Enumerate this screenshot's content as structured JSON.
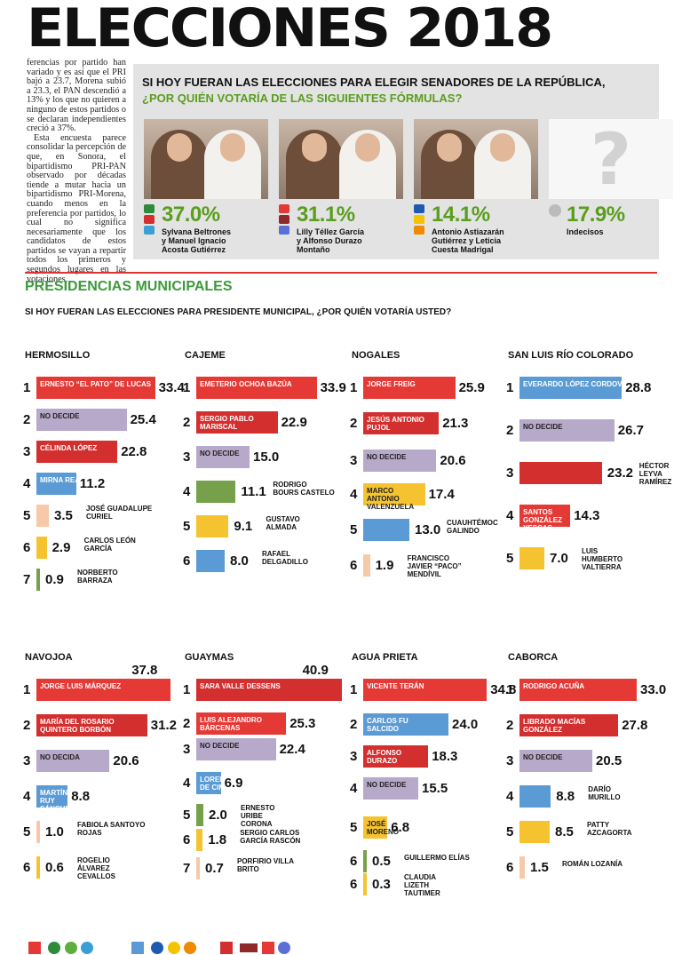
{
  "header": {
    "title": "ELECCIONES 2018"
  },
  "intro": [
    "ferencias por partido han variado y es así que el PRI bajó a 23.7, Morena subió a 23.3, el PAN descendió a 13% y los que no quieren a ninguno de estos partidos o se declaran independientes creció a 37%.",
    "Esta encuesta parece consolidar la percepción de que, en Sonora, el bipartidismo PRI-PAN observado por décadas tiende a mutar hacia un bipartidismo PRI-Morena, cuando menos en la preferencia por partidos, lo cual no significa necesariamente que los candidatos de estos partidos se vayan a repartir todos los primeros y segundos lugares en las votaciones."
  ],
  "senadores": {
    "title_line1": "SI HOY FUERAN LAS ELECCIONES PARA ELEGIR SENADORES DE LA REPÚBLICA,",
    "title_line2": "¿POR QUIÉN VOTARÍA DE LAS SIGUIENTES FÓRMULAS?",
    "candidates": [
      {
        "pct": "37.0%",
        "line1": "Sylvana Beltrones",
        "line2": "y Manuel Ignacio",
        "line3": "Acosta Gutiérrez",
        "logos": [
          "#2e8b3a",
          "#d32f2f",
          "#39a0d6"
        ]
      },
      {
        "pct": "31.1%",
        "line1": "Lilly Téllez García",
        "line2": "y Alfonso Durazo",
        "line3": "Montaño",
        "logos": [
          "#e53935",
          "#8e2a2a",
          "#5b6fd6"
        ]
      },
      {
        "pct": "14.1%",
        "line1": "Antonio Astiazarán",
        "line2": "Gutiérrez y Leticia",
        "line3": "Cuesta Madrigal",
        "logos": [
          "#1e5bb0",
          "#f5c400",
          "#f08a00"
        ]
      },
      {
        "pct": "17.9%",
        "line1": "Indecisos",
        "line2": "",
        "line3": "",
        "logos": []
      }
    ],
    "unknown_symbol": "?"
  },
  "section": {
    "title": "PRESIDENCIAS MUNICIPALES",
    "question": "SI HOY FUERAN LAS ELECCIONES PARA PRESIDENTE MUNICIPAL, ¿POR QUIÉN VOTARÍA USTED?"
  },
  "colors": {
    "pri": "#e53935",
    "morena": "#d32f2f",
    "nodecide": "#b7a9c9",
    "pan": "#5b9bd5",
    "green": "#77a04a",
    "yellow": "#f5c330",
    "peach": "#f6c9a8"
  },
  "chart_data": [
    {
      "type": "bar",
      "city": "HERMOSILLO",
      "entries": [
        {
          "rank": "1",
          "value": 33.4,
          "label": "ERNESTO “EL PATO” DE LUCAS",
          "color": "pri",
          "inside": true
        },
        {
          "rank": "2",
          "value": 25.4,
          "label": "NO DECIDE",
          "color": "nodecide",
          "inside": true
        },
        {
          "rank": "3",
          "value": 22.8,
          "label": "CÉLINDA LÓPEZ",
          "color": "morena",
          "inside": true
        },
        {
          "rank": "4",
          "value": 11.2,
          "label": "MIRNA REA",
          "color": "pan",
          "inside": true
        },
        {
          "rank": "5",
          "value": 3.5,
          "label": "JOSÉ GUADALUPE\nCURIEL",
          "color": "peach",
          "inside": false
        },
        {
          "rank": "6",
          "value": 2.9,
          "label": "CARLOS LEÓN\nGARCÍA",
          "color": "yellow",
          "inside": false
        },
        {
          "rank": "7",
          "value": 0.9,
          "label": "NORBERTO\nBARRAZA",
          "color": "green",
          "inside": false
        }
      ]
    },
    {
      "type": "bar",
      "city": "CAJEME",
      "entries": [
        {
          "rank": "1",
          "value": 33.9,
          "label": "EMETERIO OCHOA BAZÚA",
          "color": "pri",
          "inside": true
        },
        {
          "rank": "2",
          "value": 22.9,
          "label": "SERGIO PABLO\nMARISCAL",
          "color": "morena",
          "inside": true
        },
        {
          "rank": "3",
          "value": 15.0,
          "label": "NO DECIDE",
          "color": "nodecide",
          "inside": true
        },
        {
          "rank": "4",
          "value": 11.1,
          "label": "RODRIGO\nBOURS CASTELO",
          "color": "green",
          "inside": false
        },
        {
          "rank": "5",
          "value": 9.1,
          "label": "GUSTAVO\nALMADA",
          "color": "yellow",
          "inside": false
        },
        {
          "rank": "6",
          "value": 8.0,
          "label": "RAFAEL\nDELGADILLO",
          "color": "pan",
          "inside": false
        }
      ]
    },
    {
      "type": "bar",
      "city": "NOGALES",
      "entries": [
        {
          "rank": "1",
          "value": 25.9,
          "label": "JORGE FREIG",
          "color": "pri",
          "inside": true
        },
        {
          "rank": "2",
          "value": 21.3,
          "label": "JESÚS ANTONIO\nPUJOL",
          "color": "morena",
          "inside": true
        },
        {
          "rank": "3",
          "value": 20.6,
          "label": "NO DECIDE",
          "color": "nodecide",
          "inside": true
        },
        {
          "rank": "4",
          "value": 17.4,
          "label": "MARCO ANTONIO\nVALENZUELA",
          "color": "yellow",
          "inside": true
        },
        {
          "rank": "5",
          "value": 13.0,
          "label": "CUAUHTÉMOC\nGALINDO",
          "color": "pan",
          "inside": false
        },
        {
          "rank": "6",
          "value": 1.9,
          "label": "FRANCISCO\nJAVIER “PACO”\nMENDÍVIL",
          "color": "peach",
          "inside": false
        }
      ]
    },
    {
      "type": "bar",
      "city": "SAN LUIS RÍO COLORADO",
      "entries": [
        {
          "rank": "1",
          "value": 28.8,
          "label": "EVERARDO LÓPEZ CORDOVA",
          "color": "pan",
          "inside": true
        },
        {
          "rank": "2",
          "value": 26.7,
          "label": "NO DECIDE",
          "color": "nodecide",
          "inside": true
        },
        {
          "rank": "3",
          "value": 23.2,
          "label": "HÉCTOR\nLEYVA\nRAMÍREZ",
          "color": "morena",
          "inside": false
        },
        {
          "rank": "4",
          "value": 14.3,
          "label": "SANTOS\nGONZÁLEZ\nYESCAS",
          "color": "pri",
          "inside": true
        },
        {
          "rank": "5",
          "value": 7.0,
          "label": "LUIS\nHUMBERTO\nVALTIERRA",
          "color": "yellow",
          "inside": false
        }
      ]
    },
    {
      "type": "bar",
      "city": "NAVOJOA",
      "entries": [
        {
          "rank": "1",
          "value": 37.8,
          "label": "JORGE LUIS MÁRQUEZ",
          "color": "pri",
          "inside": true
        },
        {
          "rank": "2",
          "value": 31.2,
          "label": "MARÍA DEL ROSARIO\nQUINTERO BORBÓN",
          "color": "morena",
          "inside": true
        },
        {
          "rank": "3",
          "value": 20.6,
          "label": "NO DECIDA",
          "color": "nodecide",
          "inside": true
        },
        {
          "rank": "4",
          "value": 8.8,
          "label": "MARTÍN RUY\nSÁNCHEZ",
          "color": "pan",
          "inside": true
        },
        {
          "rank": "5",
          "value": 1.0,
          "label": "FABIOLA SANTOYO\nROJAS",
          "color": "peach",
          "inside": false
        },
        {
          "rank": "6",
          "value": 0.6,
          "label": "ROGELIO\nÁLVAREZ\nCEVALLOS",
          "color": "yellow",
          "inside": false
        }
      ]
    },
    {
      "type": "bar",
      "city": "GUAYMAS",
      "entries": [
        {
          "rank": "1",
          "value": 40.9,
          "label": "SARA VALLE DESSENS",
          "color": "morena",
          "inside": true
        },
        {
          "rank": "2",
          "value": 25.3,
          "label": "LUIS ALEJANDRO\nBÁRCENAS",
          "color": "pri",
          "inside": true
        },
        {
          "rank": "3",
          "value": 22.4,
          "label": "NO DECIDE",
          "color": "nodecide",
          "inside": true
        },
        {
          "rank": "4",
          "value": 6.9,
          "label": "LORENZO\nDE CIMA",
          "color": "pan",
          "inside": true
        },
        {
          "rank": "5",
          "value": 2.0,
          "label": "ERNESTO\nURIBE\nCORONA",
          "color": "green",
          "inside": false
        },
        {
          "rank": "6",
          "value": 1.8,
          "label": "SERGIO CARLOS\nGARCÍA RASCÓN",
          "color": "yellow",
          "inside": false
        },
        {
          "rank": "7",
          "value": 0.7,
          "label": "PORFIRIO VILLA\nBRITO",
          "color": "peach",
          "inside": false
        }
      ]
    },
    {
      "type": "bar",
      "city": "AGUA PRIETA",
      "entries": [
        {
          "rank": "1",
          "value": 34.8,
          "label": "VICENTE TERÁN",
          "color": "pri",
          "inside": true
        },
        {
          "rank": "2",
          "value": 24.0,
          "label": "CARLOS FU\nSALCIDO",
          "color": "pan",
          "inside": true
        },
        {
          "rank": "3",
          "value": 18.3,
          "label": "ALFONSO\nDURAZO",
          "color": "morena",
          "inside": true
        },
        {
          "rank": "4",
          "value": 15.5,
          "label": "NO DECIDE",
          "color": "nodecide",
          "inside": true
        },
        {
          "rank": "5",
          "value": 6.8,
          "label": "JOSÉ\nMORENO",
          "color": "yellow",
          "inside": true
        },
        {
          "rank": "6",
          "value": 0.5,
          "label": "GUILLERMO ELÍAS",
          "color": "green",
          "inside": false
        },
        {
          "rank": "6",
          "value": 0.3,
          "label": "CLAUDIA\nLIZETH\nTAUTIMER",
          "color": "yellow",
          "inside": false
        }
      ]
    },
    {
      "type": "bar",
      "city": "CABORCA",
      "entries": [
        {
          "rank": "1",
          "value": 33.0,
          "label": "RODRIGO ACUÑA",
          "color": "pri",
          "inside": true
        },
        {
          "rank": "2",
          "value": 27.8,
          "label": "LIBRADO MACÍAS\nGONZÁLEZ",
          "color": "morena",
          "inside": true
        },
        {
          "rank": "3",
          "value": 20.5,
          "label": "NO DECIDE",
          "color": "nodecide",
          "inside": true
        },
        {
          "rank": "4",
          "value": 8.8,
          "label": "DARÍO\nMURILLO",
          "color": "pan",
          "inside": false
        },
        {
          "rank": "5",
          "value": 8.5,
          "label": "PATTY\nAZCAGORTA",
          "color": "yellow",
          "inside": false
        },
        {
          "rank": "6",
          "value": 1.5,
          "label": "ROMÁN LOZANÍA",
          "color": "peach",
          "inside": false
        }
      ]
    }
  ]
}
